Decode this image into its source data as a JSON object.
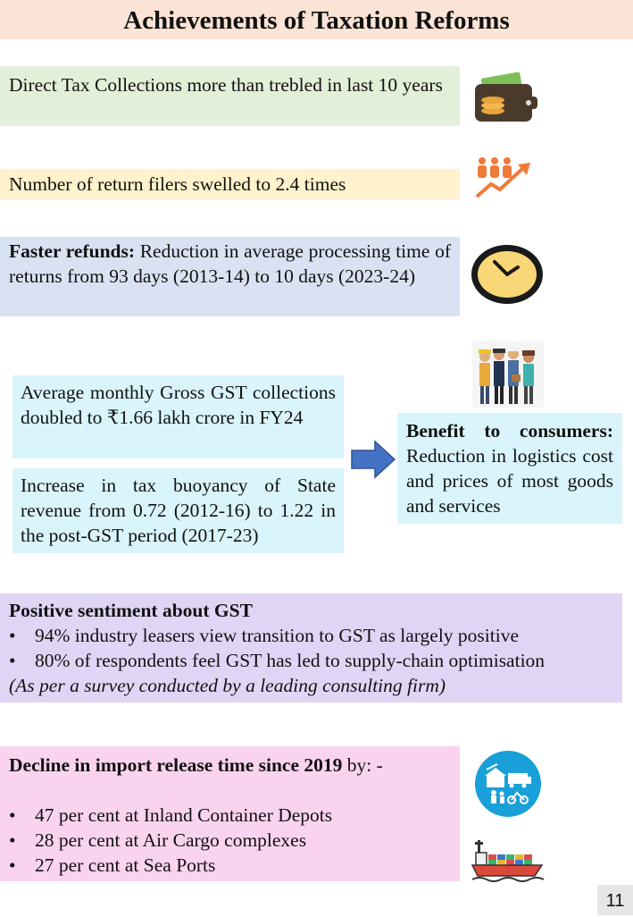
{
  "title": "Achievements of Taxation Reforms",
  "blocks": {
    "direct_tax": "Direct Tax Collections more than trebled in last 10 years",
    "return_filers": "Number of return filers swelled to 2.4 times",
    "refunds": {
      "bold": "Faster refunds:",
      "text": " Reduction in average processing time of returns from 93 days (2013-14) to 10 days (2023-24)"
    },
    "gst_collections": "Average monthly Gross GST collections doubled to ₹1.66 lakh crore in FY24",
    "tax_buoyancy": "Increase in tax buoyancy of State revenue from 0.72 (2012-16) to 1.22 in the post-GST period (2017-23)",
    "consumers": {
      "bold": "Benefit to consumers:",
      "text": "Reduction in logistics cost and prices of most goods and services"
    },
    "sentiment": {
      "heading": "Positive sentiment about GST",
      "bullets": [
        "94% industry leasers view transition to GST as largely positive",
        "80% of respondents feel GST has led to supply-chain optimisation"
      ],
      "note": "(As per a survey conducted by a leading consulting firm)"
    },
    "import": {
      "heading": "Decline in import release time since 2019",
      "heading_suffix": " by: -",
      "bullets": [
        "47 per cent at Inland Container Depots",
        "28 per cent at Air Cargo complexes",
        "27 per cent at Sea Ports"
      ]
    }
  },
  "page_number": "11",
  "icons": [
    "wallet-icon",
    "growth-people-icon",
    "clock-icon",
    "workers-icon",
    "arrow-right-icon",
    "logistics-icon",
    "ship-icon"
  ],
  "colors": {
    "title_bg": "#fbe4d5",
    "green": "#e2efd9",
    "yellow": "#fff2cc",
    "blue": "#d9e2f3",
    "cyan": "#d9f5fb",
    "purple": "#e1d5f5",
    "pink": "#fad3ee",
    "arrow": "#4472c4"
  }
}
